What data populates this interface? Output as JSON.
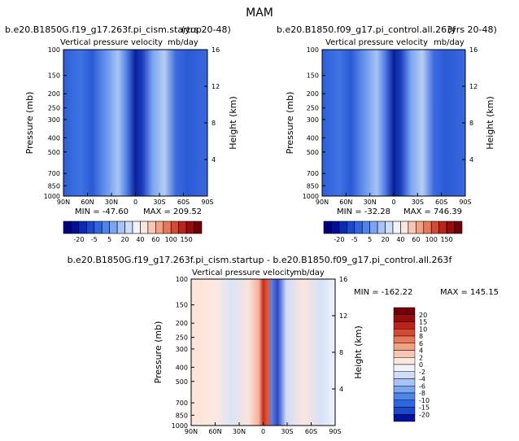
{
  "figure_title": "MAM",
  "colors": {
    "blue_scale": [
      "#00007f",
      "#00109a",
      "#0a2bb8",
      "#1a49cf",
      "#2f66df",
      "#4d86ea",
      "#7aa6f1",
      "#a8c4f5",
      "#cfdcf7",
      "#f1f3fb",
      "#fde6dd",
      "#f8c6b3",
      "#f0a283",
      "#e6795a",
      "#d64a33",
      "#bb2419",
      "#960b0d",
      "#6f0008"
    ],
    "field_low": "#2a5ad8",
    "field_mid": "#0a1f9a",
    "field_light": "#bcd0f3"
  },
  "chart_data": [
    {
      "id": "top-left",
      "type": "heatmap",
      "case_title": "b.e20.B1850G.f19_g17.263f.pi_cism.startup",
      "years": "(yrs 20-48)",
      "variable": "Vertical pressure velocity",
      "units": "mb/day",
      "ylabel": "Pressure (mb)",
      "ylabel_right": "Height (km)",
      "x_ticks": [
        "90N",
        "60N",
        "30N",
        "0",
        "30S",
        "60S",
        "90S"
      ],
      "x_values": [
        90,
        60,
        30,
        0,
        -30,
        -60,
        -90
      ],
      "y_ticks": [
        "100",
        "150",
        "200",
        "250",
        "300",
        "400",
        "500",
        "700",
        "850",
        "1000"
      ],
      "y_values": [
        100,
        150,
        200,
        250,
        300,
        400,
        500,
        700,
        850,
        1000
      ],
      "height_ticks": [
        "16",
        "12",
        "8",
        "4"
      ],
      "height_values": [
        16,
        12,
        8,
        4
      ],
      "min_label": "MIN = -47.60",
      "max_label": "MAX = 209.52",
      "min": -47.6,
      "max": 209.52,
      "colorbar_labels": [
        "-20",
        "-5",
        "5",
        "20",
        "40",
        "60",
        "100",
        "150"
      ]
    },
    {
      "id": "top-right",
      "type": "heatmap",
      "case_title": "b.e20.B1850.f09_g17.pi_control.all.263f",
      "years": "(yrs 20-48)",
      "variable": "Vertical pressure velocity",
      "units": "mb/day",
      "ylabel": "Pressure (mb)",
      "ylabel_right": "Height (km)",
      "x_ticks": [
        "90N",
        "60N",
        "30N",
        "0",
        "30S",
        "60S",
        "90S"
      ],
      "x_values": [
        90,
        60,
        30,
        0,
        -30,
        -60,
        -90
      ],
      "y_ticks": [
        "100",
        "150",
        "200",
        "250",
        "300",
        "400",
        "500",
        "700",
        "850",
        "1000"
      ],
      "y_values": [
        100,
        150,
        200,
        250,
        300,
        400,
        500,
        700,
        850,
        1000
      ],
      "height_ticks": [
        "16",
        "12",
        "8",
        "4"
      ],
      "height_values": [
        16,
        12,
        8,
        4
      ],
      "min_label": "MIN = -32.28",
      "max_label": "MAX = 746.39",
      "min": -32.28,
      "max": 746.39,
      "colorbar_labels": [
        "-20",
        "-5",
        "5",
        "20",
        "40",
        "60",
        "100",
        "150"
      ]
    },
    {
      "id": "bottom-diff",
      "type": "heatmap",
      "case_title": "b.e20.B1850G.f19_g17.263f.pi_cism.startup - b.e20.B1850.f09_g17.pi_control.all.263f",
      "variable": "Vertical pressure velocity",
      "units": "mb/day",
      "ylabel": "Pressure (mb)",
      "ylabel_right": "Height (km)",
      "x_ticks": [
        "90N",
        "60N",
        "30N",
        "0",
        "30S",
        "60S",
        "90S"
      ],
      "x_values": [
        90,
        60,
        30,
        0,
        -30,
        -60,
        -90
      ],
      "y_ticks": [
        "100",
        "150",
        "200",
        "250",
        "300",
        "400",
        "500",
        "700",
        "850",
        "1000"
      ],
      "y_values": [
        100,
        150,
        200,
        250,
        300,
        400,
        500,
        700,
        850,
        1000
      ],
      "height_ticks": [
        "16",
        "12",
        "8",
        "4"
      ],
      "height_values": [
        16,
        12,
        8,
        4
      ],
      "min_label": "MIN = -162.22",
      "max_label": "MAX = 145.15",
      "min": -162.22,
      "max": 145.15,
      "colorbar_labels": [
        "20",
        "15",
        "10",
        "8",
        "6",
        "4",
        "2",
        "0",
        "-2",
        "-4",
        "-6",
        "-8",
        "-10",
        "-15",
        "-20"
      ]
    }
  ]
}
